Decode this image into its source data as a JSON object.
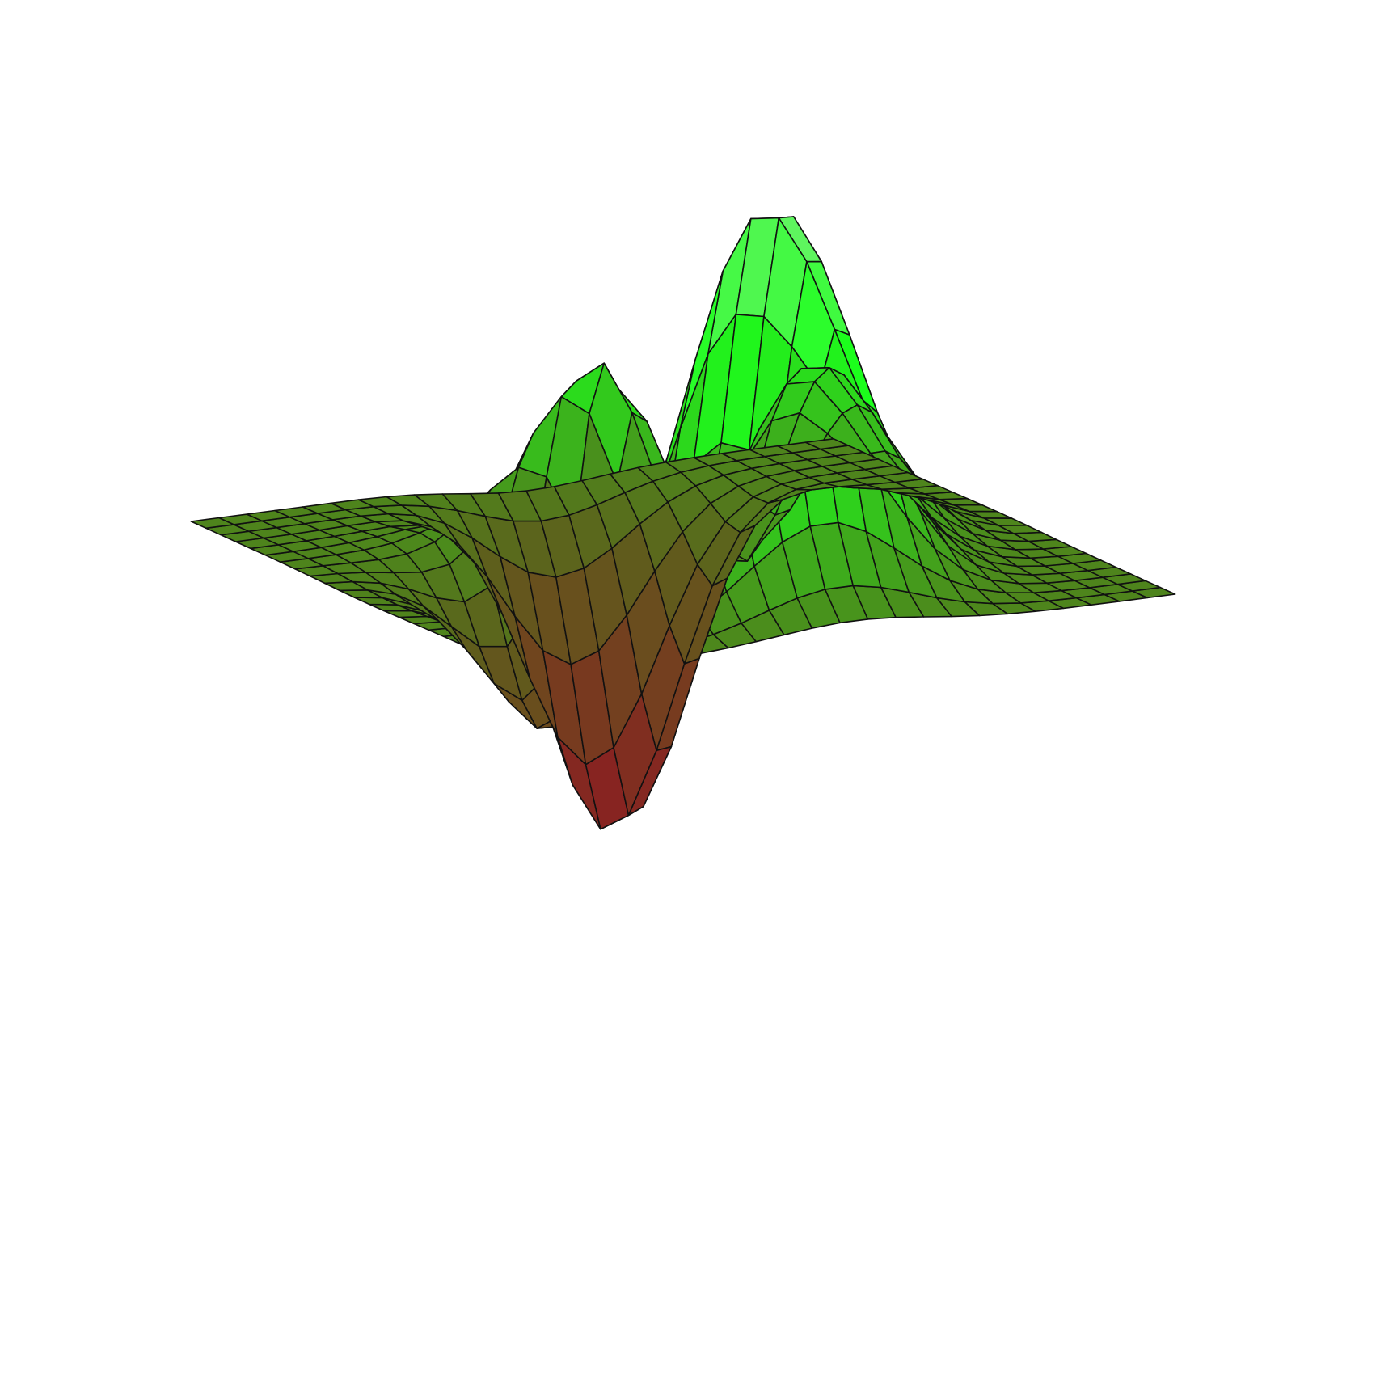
{
  "chart_data": {
    "type": "surface",
    "title": "",
    "xlabel": "",
    "ylabel": "",
    "zlabel": "",
    "axes_visible": false,
    "grid": false,
    "legend": "none",
    "colormap": {
      "low": "#8e1a22",
      "mid": "#5e5e1c",
      "high": "#1cff1c",
      "top": "#74f274"
    },
    "x_range": [
      -3,
      3
    ],
    "y_range": [
      -3,
      3
    ],
    "z_range": [
      -6.5,
      8.1
    ],
    "grid_size": [
      24,
      24
    ],
    "surface_function": "peaks",
    "features": [
      {
        "kind": "peak",
        "x": -0.009,
        "y": 1.58,
        "z": 8.1
      },
      {
        "kind": "peak",
        "x": -0.46,
        "y": -0.63,
        "z": 3.78
      },
      {
        "kind": "peak",
        "x": 1.29,
        "y": 0.0,
        "z": 3.59
      },
      {
        "kind": "valley",
        "x": 0.23,
        "y": -1.63,
        "z": -6.55
      },
      {
        "kind": "valley",
        "x": -1.35,
        "y": 0.2,
        "z": -3.05
      }
    ]
  }
}
